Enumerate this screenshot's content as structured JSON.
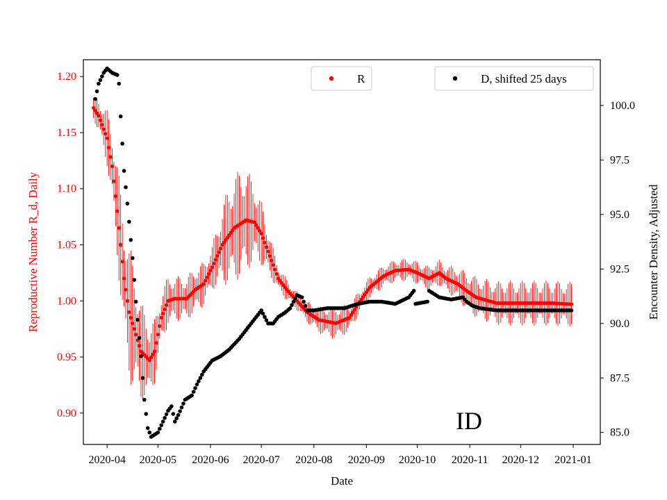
{
  "chart_data": {
    "type": "scatter",
    "xlabel": "Date",
    "ylabel_left": "Reproductive Number R_d, Daily",
    "ylabel_right": "Encounter Density, Adjusted",
    "annotation": "ID",
    "x_ticks": [
      "2020-04",
      "2020-05",
      "2020-06",
      "2020-07",
      "2020-08",
      "2020-09",
      "2020-10",
      "2020-11",
      "2020-12",
      "2021-01"
    ],
    "y_left_ticks": [
      "0.90",
      "0.95",
      "1.00",
      "1.05",
      "1.10",
      "1.15",
      "1.20"
    ],
    "y_right_ticks": [
      "85.0",
      "87.5",
      "90.0",
      "92.5",
      "95.0",
      "97.5",
      "100.0"
    ],
    "ylim_left": [
      0.872,
      1.215
    ],
    "ylim_right": [
      84.45,
      102.1
    ],
    "x_range_days": [
      -14,
      291
    ],
    "x_tick_days": [
      0,
      30,
      61,
      91,
      122,
      153,
      183,
      214,
      244,
      275
    ],
    "legend": [
      {
        "label": "R",
        "color": "#ff0000"
      },
      {
        "label": "D, shifted 25 days",
        "color": "#000000"
      }
    ],
    "series": [
      {
        "name": "R",
        "color": "#ff0000",
        "axis": "left",
        "day_range": [
          -8,
          274
        ],
        "anchors": [
          [
            -8,
            1.172
          ],
          [
            -5,
            1.165
          ],
          [
            0,
            1.145
          ],
          [
            3,
            1.12
          ],
          [
            6,
            1.08
          ],
          [
            8,
            1.05
          ],
          [
            10,
            1.02
          ],
          [
            13,
            0.99
          ],
          [
            16,
            0.975
          ],
          [
            20,
            0.955
          ],
          [
            25,
            0.947
          ],
          [
            28,
            0.955
          ],
          [
            32,
            0.985
          ],
          [
            36,
            1.0
          ],
          [
            40,
            1.002
          ],
          [
            47,
            1.002
          ],
          [
            52,
            1.01
          ],
          [
            57,
            1.015
          ],
          [
            62,
            1.03
          ],
          [
            68,
            1.05
          ],
          [
            75,
            1.065
          ],
          [
            82,
            1.072
          ],
          [
            87,
            1.07
          ],
          [
            91,
            1.06
          ],
          [
            96,
            1.04
          ],
          [
            101,
            1.02
          ],
          [
            106,
            1.01
          ],
          [
            112,
            1.0
          ],
          [
            118,
            0.99
          ],
          [
            125,
            0.983
          ],
          [
            135,
            0.98
          ],
          [
            143,
            0.985
          ],
          [
            148,
            0.997
          ],
          [
            155,
            1.012
          ],
          [
            163,
            1.022
          ],
          [
            170,
            1.027
          ],
          [
            178,
            1.028
          ],
          [
            183,
            1.025
          ],
          [
            190,
            1.02
          ],
          [
            196,
            1.025
          ],
          [
            200,
            1.02
          ],
          [
            207,
            1.015
          ],
          [
            213,
            1.008
          ],
          [
            218,
            1.003
          ],
          [
            225,
            1.0
          ],
          [
            230,
            0.998
          ],
          [
            250,
            0.998
          ],
          [
            262,
            0.998
          ],
          [
            274,
            0.997
          ]
        ],
        "error_amplitude": [
          [
            -8,
            0.01
          ],
          [
            0,
            0.025
          ],
          [
            8,
            0.05
          ],
          [
            14,
            0.06
          ],
          [
            22,
            0.04
          ],
          [
            30,
            0.025
          ],
          [
            40,
            0.02
          ],
          [
            47,
            0.02
          ],
          [
            62,
            0.02
          ],
          [
            72,
            0.045
          ],
          [
            80,
            0.05
          ],
          [
            90,
            0.03
          ],
          [
            100,
            0.012
          ],
          [
            110,
            0.008
          ],
          [
            120,
            0.01
          ],
          [
            135,
            0.015
          ],
          [
            150,
            0.01
          ],
          [
            165,
            0.01
          ],
          [
            180,
            0.01
          ],
          [
            200,
            0.012
          ],
          [
            215,
            0.018
          ],
          [
            235,
            0.02
          ],
          [
            274,
            0.02
          ]
        ]
      },
      {
        "name": "D, shifted 25 days",
        "color": "#000000",
        "axis": "right",
        "day_range": [
          -7,
          274
        ],
        "anchors": [
          [
            -7,
            100.3
          ],
          [
            -5,
            101.0
          ],
          [
            -2,
            101.5
          ],
          [
            0,
            101.7
          ],
          [
            3,
            101.5
          ],
          [
            6,
            101.4
          ],
          [
            7,
            101.0
          ],
          [
            8,
            99.5
          ],
          [
            10,
            97.0
          ],
          [
            12,
            95.5
          ],
          [
            15,
            93.0
          ],
          [
            17,
            91.0
          ],
          [
            20,
            88.5
          ],
          [
            22,
            86.5
          ],
          [
            24,
            85.2
          ],
          [
            26,
            84.8
          ],
          [
            30,
            85.0
          ],
          [
            33,
            85.5
          ],
          [
            36,
            86.0
          ],
          [
            38,
            86.2
          ],
          [
            40,
            85.5
          ],
          [
            42,
            85.8
          ],
          [
            46,
            86.5
          ],
          [
            50,
            86.7
          ],
          [
            53,
            87.2
          ],
          [
            57,
            87.8
          ],
          [
            62,
            88.3
          ],
          [
            67,
            88.5
          ],
          [
            72,
            88.8
          ],
          [
            78,
            89.3
          ],
          [
            83,
            89.8
          ],
          [
            87,
            90.2
          ],
          [
            91,
            90.6
          ],
          [
            95,
            90.0
          ],
          [
            98,
            90.0
          ],
          [
            101,
            90.3
          ],
          [
            105,
            90.5
          ],
          [
            108,
            90.7
          ],
          [
            112,
            91.3
          ],
          [
            115,
            91.2
          ],
          [
            118,
            90.6
          ],
          [
            122,
            90.6
          ],
          [
            130,
            90.7
          ],
          [
            140,
            90.7
          ],
          [
            148,
            90.9
          ],
          [
            155,
            91.0
          ],
          [
            162,
            91.0
          ],
          [
            170,
            90.9
          ],
          [
            178,
            91.2
          ],
          [
            181,
            91.5
          ],
          [
            182,
            90.9
          ],
          [
            189,
            91.0
          ],
          [
            190,
            91.5
          ],
          [
            196,
            91.2
          ],
          [
            203,
            91.1
          ],
          [
            210,
            91.2
          ],
          [
            212,
            91.0
          ],
          [
            216,
            90.8
          ],
          [
            220,
            90.7
          ],
          [
            230,
            90.6
          ],
          [
            250,
            90.6
          ],
          [
            274,
            90.6
          ]
        ]
      }
    ]
  }
}
